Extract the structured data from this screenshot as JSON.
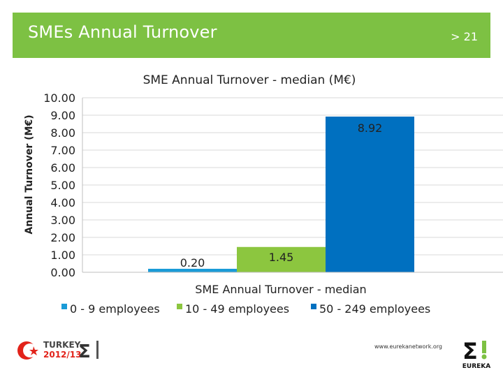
{
  "header": {
    "title": "SMEs Annual Turnover",
    "page": "> 21"
  },
  "chart_data": {
    "type": "bar",
    "title": "SME Annual Turnover - median (M€)",
    "xlabel": "SME Annual Turnover - median",
    "ylabel": "Annual Turnover (M€)",
    "ylim": [
      0,
      10
    ],
    "yticks": [
      "0.00",
      "1.00",
      "2.00",
      "3.00",
      "4.00",
      "5.00",
      "6.00",
      "7.00",
      "8.00",
      "9.00",
      "10.00"
    ],
    "grid": true,
    "legend_position": "bottom",
    "categories": [
      "SME Annual Turnover - median"
    ],
    "series": [
      {
        "name": "0 - 9 employees",
        "values": [
          0.2
        ],
        "label": "0.20",
        "color": "#1a9bd7"
      },
      {
        "name": "10 - 49 employees",
        "values": [
          1.45
        ],
        "label": "1.45",
        "color": "#8cc63f"
      },
      {
        "name": "50 - 249 employees",
        "values": [
          8.92
        ],
        "label": "8.92",
        "color": "#0070c0"
      }
    ]
  },
  "footer": {
    "url": "www.eurekanetwork.org",
    "logo_left_text": "TURKEY",
    "logo_left_year": "2012/13",
    "logo_right_text": "EUREKA"
  },
  "icons": [
    "turkey-chairmanship-logo",
    "eureka-logo"
  ]
}
